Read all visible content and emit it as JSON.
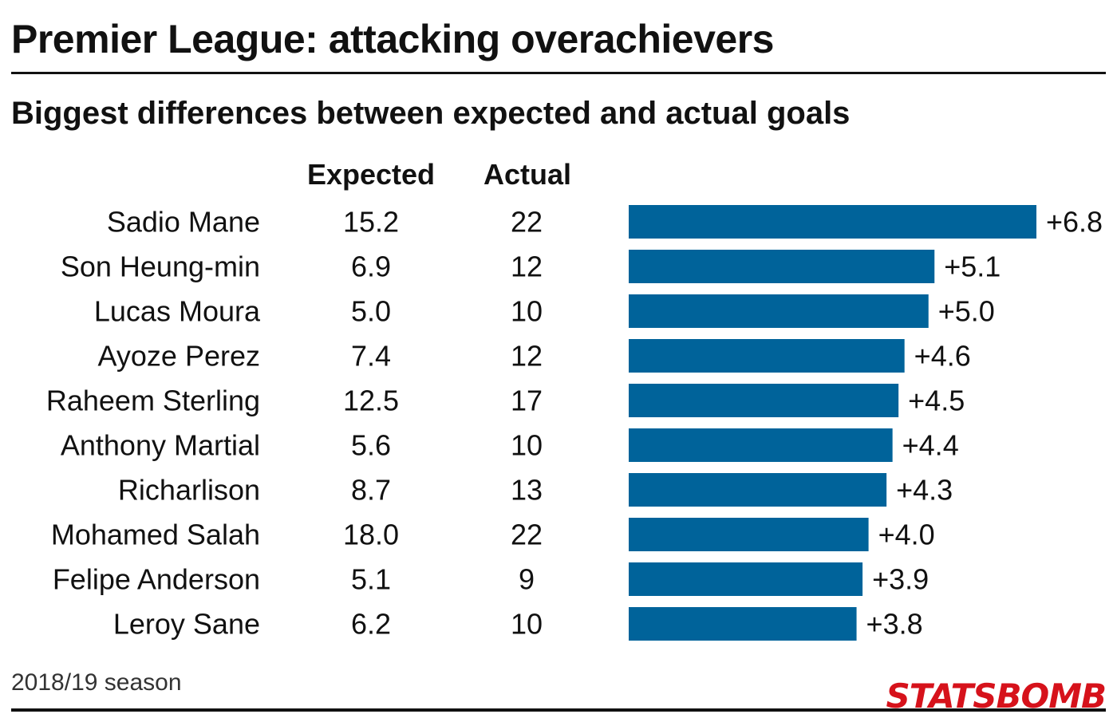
{
  "chart_data": {
    "type": "bar",
    "orientation": "horizontal",
    "title": "Premier League: attacking overachievers",
    "subtitle": "Biggest differences between expected and actual goals",
    "column_headers": {
      "expected": "Expected",
      "actual": "Actual"
    },
    "categories": [
      "Sadio Mane",
      "Son Heung-min",
      "Lucas Moura",
      "Ayoze Perez",
      "Raheem Sterling",
      "Anthony Martial",
      "Richarlison",
      "Mohamed Salah",
      "Felipe Anderson",
      "Leroy Sane"
    ],
    "expected": [
      "15.2",
      "6.9",
      "5.0",
      "7.4",
      "12.5",
      "5.6",
      "8.7",
      "18.0",
      "5.1",
      "6.2"
    ],
    "actual": [
      "22",
      "12",
      "10",
      "12",
      "17",
      "10",
      "13",
      "22",
      "9",
      "10"
    ],
    "series": [
      {
        "values": [
          6.8,
          5.1,
          5.0,
          4.6,
          4.5,
          4.4,
          4.3,
          4.0,
          3.9,
          3.8
        ],
        "labels": [
          "+6.8",
          "+5.1",
          "+5.0",
          "+4.6",
          "+4.5",
          "+4.4",
          "+4.3",
          "+4.0",
          "+3.9",
          "+3.8"
        ]
      }
    ],
    "xlim": [
      0,
      6.8
    ],
    "bar_color": "#00639a",
    "grid": false,
    "legend": "none"
  },
  "footnote": "2018/19 season",
  "logo_text": "STATSBOMB"
}
